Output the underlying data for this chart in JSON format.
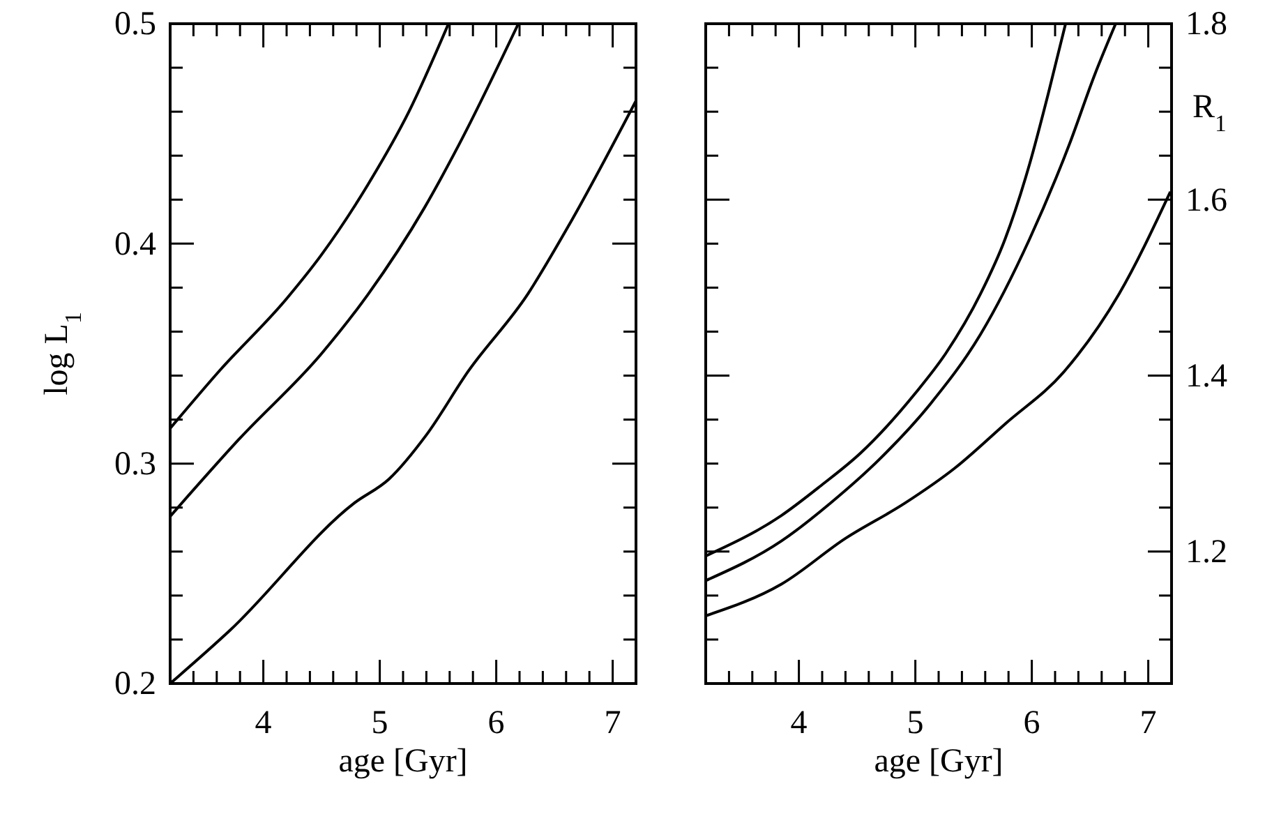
{
  "chart_data": [
    {
      "type": "line",
      "xlabel": "age [Gyr]",
      "ylabel": "log L$_{1}$",
      "xlim": [
        3.2,
        7.2
      ],
      "ylim": [
        0.2,
        0.5
      ],
      "xticks": [
        {
          "value": 3.4,
          "label": null
        },
        {
          "value": 3.6,
          "label": null
        },
        {
          "value": 3.8,
          "label": null
        },
        4,
        {
          "value": 4.2,
          "label": null
        },
        {
          "value": 4.4,
          "label": null
        },
        {
          "value": 4.6,
          "label": null
        },
        {
          "value": 4.8,
          "label": null
        },
        5,
        {
          "value": 5.2,
          "label": null
        },
        {
          "value": 5.4,
          "label": null
        },
        {
          "value": 5.6,
          "label": null
        },
        {
          "value": 5.8,
          "label": null
        },
        6,
        {
          "value": 6.2,
          "label": null
        },
        {
          "value": 6.4,
          "label": null
        },
        {
          "value": 6.6,
          "label": null
        },
        {
          "value": 6.8,
          "label": null
        },
        7
      ],
      "yticks": [
        0.2,
        {
          "value": 0.22,
          "label": null
        },
        {
          "value": 0.24,
          "label": null
        },
        {
          "value": 0.26,
          "label": null
        },
        {
          "value": 0.28,
          "label": null
        },
        0.3,
        {
          "value": 0.32,
          "label": null
        },
        {
          "value": 0.34,
          "label": null
        },
        {
          "value": 0.36,
          "label": null
        },
        {
          "value": 0.38,
          "label": null
        },
        0.4,
        {
          "value": 0.42,
          "label": null
        },
        {
          "value": 0.44,
          "label": null
        },
        {
          "value": 0.46,
          "label": null
        },
        {
          "value": 0.48,
          "label": null
        },
        0.5
      ],
      "series": [
        {
          "color": "#000000",
          "x": [
            3.2,
            3.62,
            4.2,
            4.5,
            4.9,
            5.25,
            5.59
          ],
          "values": [
            0.316,
            0.342,
            0.375,
            0.395,
            0.427,
            0.46,
            0.5
          ]
        },
        {
          "color": "#000000",
          "x": [
            3.2,
            3.79,
            4.5,
            4.9,
            5.38,
            5.68,
            6.19
          ],
          "values": [
            0.276,
            0.311,
            0.35,
            0.377,
            0.416,
            0.445,
            0.5
          ]
        },
        {
          "color": "#000000",
          "x": [
            3.2,
            3.71,
            4.78,
            5.08,
            5.4,
            5.76,
            6.27,
            6.62,
            7.2
          ],
          "values": [
            0.2,
            0.224,
            0.282,
            0.293,
            0.313,
            0.342,
            0.377,
            0.408,
            0.465
          ]
        }
      ]
    },
    {
      "type": "line",
      "xlabel": "age [Gyr]",
      "y2label": "R$_{1}$",
      "xlim": [
        3.2,
        7.2
      ],
      "y2lim": [
        1.05,
        1.8
      ],
      "xticks": [
        {
          "value": 3.4,
          "label": null
        },
        {
          "value": 3.6,
          "label": null
        },
        {
          "value": 3.8,
          "label": null
        },
        4,
        {
          "value": 4.2,
          "label": null
        },
        {
          "value": 4.4,
          "label": null
        },
        {
          "value": 4.6,
          "label": null
        },
        {
          "value": 4.8,
          "label": null
        },
        5,
        {
          "value": 5.2,
          "label": null
        },
        {
          "value": 5.4,
          "label": null
        },
        {
          "value": 5.6,
          "label": null
        },
        {
          "value": 5.8,
          "label": null
        },
        6,
        {
          "value": 6.2,
          "label": null
        },
        {
          "value": 6.4,
          "label": null
        },
        {
          "value": 6.6,
          "label": null
        },
        {
          "value": 6.8,
          "label": null
        },
        7
      ],
      "y2ticks": [
        {
          "value": 1.1,
          "label": null
        },
        {
          "value": 1.15,
          "label": null
        },
        1.2,
        {
          "value": 1.25,
          "label": null
        },
        {
          "value": 1.3,
          "label": null
        },
        {
          "value": 1.35,
          "label": null
        },
        1.4,
        {
          "value": 1.45,
          "label": null
        },
        {
          "value": 1.5,
          "label": null
        },
        {
          "value": 1.55,
          "label": null
        },
        1.6,
        {
          "value": 1.65,
          "label": null
        },
        {
          "value": 1.7,
          "label": null
        },
        {
          "value": 1.75,
          "label": null
        },
        1.8
      ],
      "series": [
        {
          "color": "#000000",
          "axis": "y2",
          "x": [
            3.2,
            3.85,
            4.19,
            4.53,
            5.0,
            5.26,
            5.56,
            5.77,
            5.98,
            6.15,
            6.29
          ],
          "values": [
            1.195,
            1.241,
            1.275,
            1.312,
            1.38,
            1.425,
            1.493,
            1.555,
            1.64,
            1.725,
            1.8
          ]
        },
        {
          "color": "#000000",
          "axis": "y2",
          "x": [
            3.2,
            3.85,
            4.27,
            4.7,
            5.13,
            5.56,
            5.98,
            6.32,
            6.54,
            6.72
          ],
          "values": [
            1.167,
            1.212,
            1.255,
            1.306,
            1.368,
            1.447,
            1.555,
            1.662,
            1.742,
            1.8
          ]
        },
        {
          "color": "#000000",
          "axis": "y2",
          "x": [
            3.2,
            3.85,
            4.4,
            4.91,
            5.34,
            5.77,
            6.28,
            6.75,
            7.19
          ],
          "values": [
            1.127,
            1.163,
            1.215,
            1.255,
            1.295,
            1.345,
            1.405,
            1.493,
            1.609
          ]
        }
      ]
    }
  ]
}
